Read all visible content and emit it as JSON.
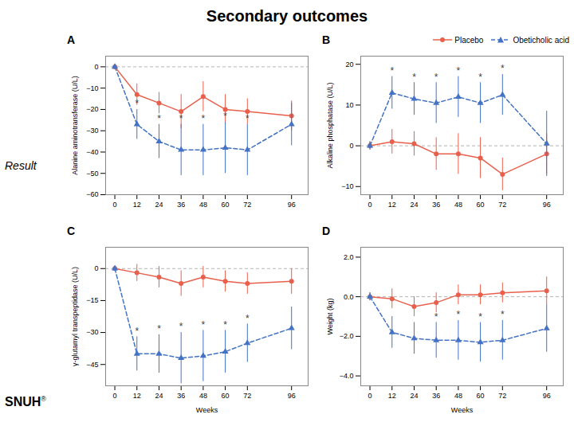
{
  "title": "Secondary outcomes",
  "annotations": [
    "Result",
    "SNUH",
    "®"
  ],
  "chart_data": [
    {
      "type": "line",
      "title": "A",
      "y_label": "Alanine aminotransferase (U/L)",
      "x": [
        0,
        12,
        24,
        36,
        48,
        60,
        72,
        96
      ],
      "xlim": [
        -5,
        105
      ],
      "xticks": [
        0,
        12,
        24,
        36,
        48,
        60,
        72,
        96
      ],
      "ylim": [
        -60,
        5
      ],
      "yticks": [
        0,
        -10,
        -20,
        -30,
        -40,
        -50,
        -60
      ],
      "grid": false,
      "series": [
        {
          "name": "Placebo",
          "color": "#E8604C",
          "marker": "circle",
          "line_style": "solid",
          "values": [
            0,
            -13,
            -17,
            -21,
            -14,
            -20,
            -21,
            -23
          ],
          "error": [
            1,
            5,
            5,
            8,
            7,
            7,
            6,
            7
          ]
        },
        {
          "name": "Obeticholic acid",
          "color": "#4472C4",
          "marker": "triangle",
          "line_style": "dashed",
          "values": [
            0,
            -27,
            -35,
            -39,
            -39,
            -38,
            -39,
            -27
          ],
          "error": [
            1,
            7,
            8,
            12,
            12,
            12,
            12,
            10
          ]
        }
      ],
      "annotations": [
        {
          "text": "*",
          "x": 12,
          "series": "Obeticholic acid"
        },
        {
          "text": "*",
          "x": 24,
          "series": "Obeticholic acid"
        },
        {
          "text": "*",
          "x": 36,
          "series": "Obeticholic acid"
        },
        {
          "text": "*",
          "x": 48,
          "series": "Obeticholic acid"
        },
        {
          "text": "*",
          "x": 60,
          "series": "Obeticholic acid"
        },
        {
          "text": "*",
          "x": 72,
          "series": "Obeticholic acid"
        }
      ]
    },
    {
      "type": "line",
      "title": "B",
      "y_label": "Alkaline phosphatase (U/L)",
      "x": [
        0,
        12,
        24,
        36,
        48,
        60,
        72,
        96
      ],
      "xlim": [
        -5,
        105
      ],
      "xticks": [
        0,
        12,
        24,
        36,
        48,
        60,
        72,
        96
      ],
      "ylim": [
        -12,
        22
      ],
      "yticks": [
        20,
        10,
        0,
        -10
      ],
      "grid": false,
      "legend": "upper right",
      "series": [
        {
          "name": "Placebo",
          "color": "#E8604C",
          "marker": "circle",
          "line_style": "solid",
          "values": [
            0,
            1,
            0.5,
            -2,
            -2,
            -3,
            -7,
            -2
          ],
          "error": [
            1,
            3,
            3,
            4,
            5,
            5,
            4,
            5
          ]
        },
        {
          "name": "Obeticholic acid",
          "color": "#4472C4",
          "marker": "triangle",
          "line_style": "dashed",
          "values": [
            0,
            13,
            11.5,
            10.5,
            12,
            10.5,
            12.5,
            0.5
          ],
          "error": [
            1,
            4,
            4,
            5,
            5,
            5,
            5,
            8
          ]
        }
      ],
      "annotations": [
        {
          "text": "*",
          "x": 12,
          "series": "Obeticholic acid"
        },
        {
          "text": "*",
          "x": 24,
          "series": "Obeticholic acid"
        },
        {
          "text": "*",
          "x": 36,
          "series": "Obeticholic acid"
        },
        {
          "text": "*",
          "x": 48,
          "series": "Obeticholic acid"
        },
        {
          "text": "*",
          "x": 60,
          "series": "Obeticholic acid"
        },
        {
          "text": "*",
          "x": 72,
          "series": "Obeticholic acid"
        }
      ]
    },
    {
      "type": "line",
      "title": "C",
      "y_label": "γ-glutamyl transpeptidase (U/L)",
      "x_label": "Weeks",
      "x": [
        0,
        12,
        24,
        36,
        48,
        60,
        72,
        96
      ],
      "xlim": [
        -5,
        105
      ],
      "xticks": [
        0,
        12,
        24,
        36,
        48,
        60,
        72,
        96
      ],
      "ylim": [
        -55,
        10
      ],
      "yticks": [
        0,
        -15,
        -30,
        -45
      ],
      "grid": false,
      "series": [
        {
          "name": "Placebo",
          "color": "#E8604C",
          "marker": "circle",
          "line_style": "solid",
          "values": [
            0,
            -2,
            -4,
            -7,
            -4,
            -6,
            -7,
            -6
          ],
          "error": [
            1,
            4,
            5,
            6,
            5,
            5,
            5,
            6
          ]
        },
        {
          "name": "Obeticholic acid",
          "color": "#4472C4",
          "marker": "triangle",
          "line_style": "dashed",
          "values": [
            0,
            -40,
            -40,
            -42,
            -41,
            -39,
            -35,
            -28
          ],
          "error": [
            1,
            8,
            9,
            12,
            12,
            10,
            9,
            10
          ]
        }
      ],
      "annotations": [
        {
          "text": "*",
          "x": 12,
          "series": "Obeticholic acid"
        },
        {
          "text": "*",
          "x": 24,
          "series": "Obeticholic acid"
        },
        {
          "text": "*",
          "x": 36,
          "series": "Obeticholic acid"
        },
        {
          "text": "*",
          "x": 48,
          "series": "Obeticholic acid"
        },
        {
          "text": "*",
          "x": 60,
          "series": "Obeticholic acid"
        },
        {
          "text": "*",
          "x": 72,
          "series": "Obeticholic acid"
        }
      ]
    },
    {
      "type": "line",
      "title": "D",
      "y_label": "Weight (kg)",
      "x_label": "Weeks",
      "x": [
        0,
        12,
        24,
        36,
        48,
        60,
        72,
        96
      ],
      "xlim": [
        -5,
        105
      ],
      "xticks": [
        0,
        12,
        24,
        36,
        48,
        60,
        72,
        96
      ],
      "ylim": [
        -4.5,
        2.5
      ],
      "yticks": [
        2,
        0,
        -2,
        -4
      ],
      "grid": false,
      "series": [
        {
          "name": "Placebo",
          "color": "#E8604C",
          "marker": "circle",
          "line_style": "solid",
          "values": [
            0,
            -0.1,
            -0.5,
            -0.3,
            0.1,
            0.1,
            0.2,
            0.3
          ],
          "error": [
            0.2,
            0.5,
            0.5,
            0.5,
            0.5,
            0.5,
            0.5,
            0.7
          ]
        },
        {
          "name": "Obeticholic acid",
          "color": "#4472C4",
          "marker": "triangle",
          "line_style": "dashed",
          "values": [
            0,
            -1.8,
            -2.1,
            -2.2,
            -2.2,
            -2.3,
            -2.2,
            -1.6
          ],
          "error": [
            0.2,
            0.8,
            0.8,
            0.9,
            1.0,
            1.0,
            1.0,
            1.2
          ]
        }
      ],
      "annotations": [
        {
          "text": "*",
          "x": 36,
          "series": "Obeticholic acid"
        },
        {
          "text": "*",
          "x": 48,
          "series": "Obeticholic acid"
        },
        {
          "text": "*",
          "x": 60,
          "series": "Obeticholic acid"
        },
        {
          "text": "*",
          "x": 72,
          "series": "Obeticholic acid"
        }
      ]
    }
  ]
}
